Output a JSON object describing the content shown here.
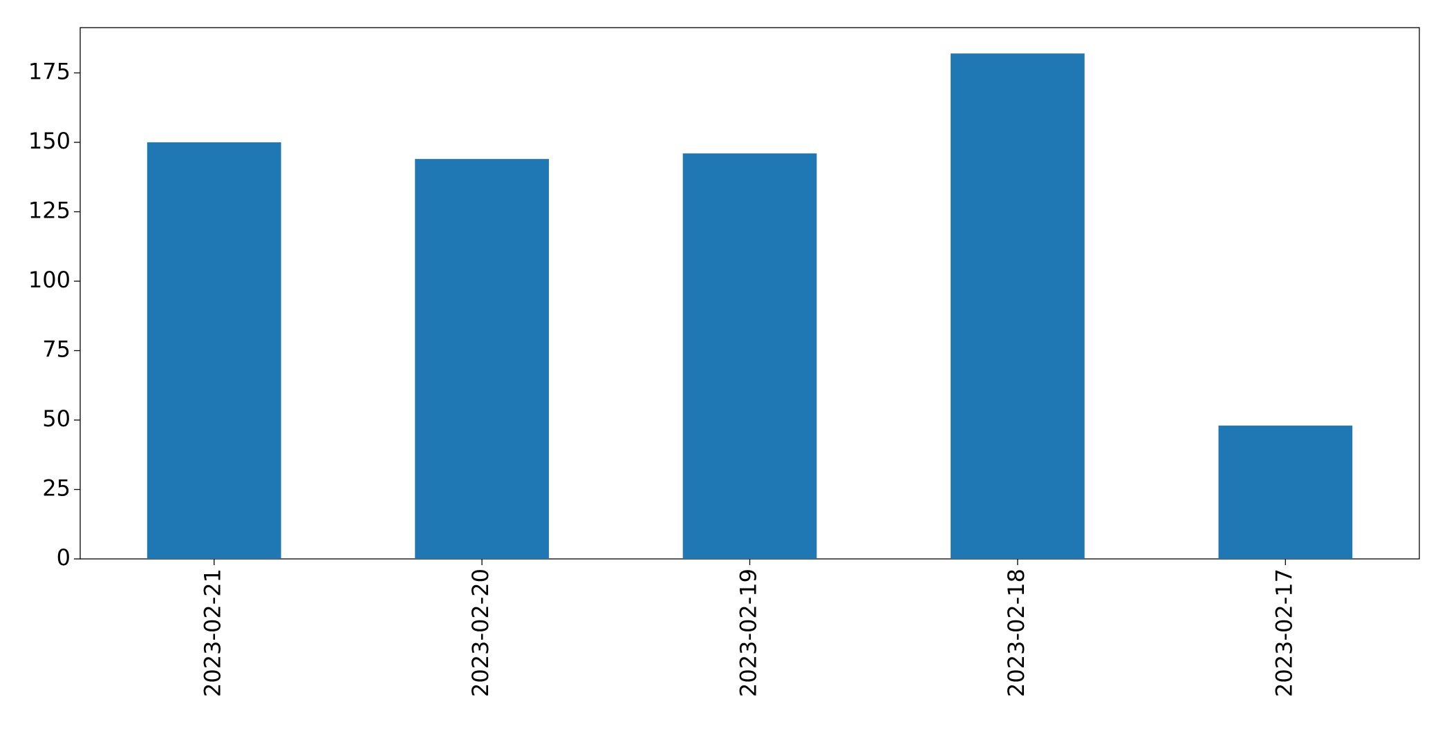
{
  "chart_data": {
    "type": "bar",
    "categories": [
      "2023-02-21",
      "2023-02-20",
      "2023-02-19",
      "2023-02-18",
      "2023-02-17"
    ],
    "values": [
      150,
      144,
      146,
      182,
      48
    ],
    "color": "#1f77b4",
    "ylim": [
      0,
      191.3
    ],
    "yticks": [
      0,
      25,
      50,
      75,
      100,
      125,
      150,
      175
    ],
    "grid": false
  }
}
